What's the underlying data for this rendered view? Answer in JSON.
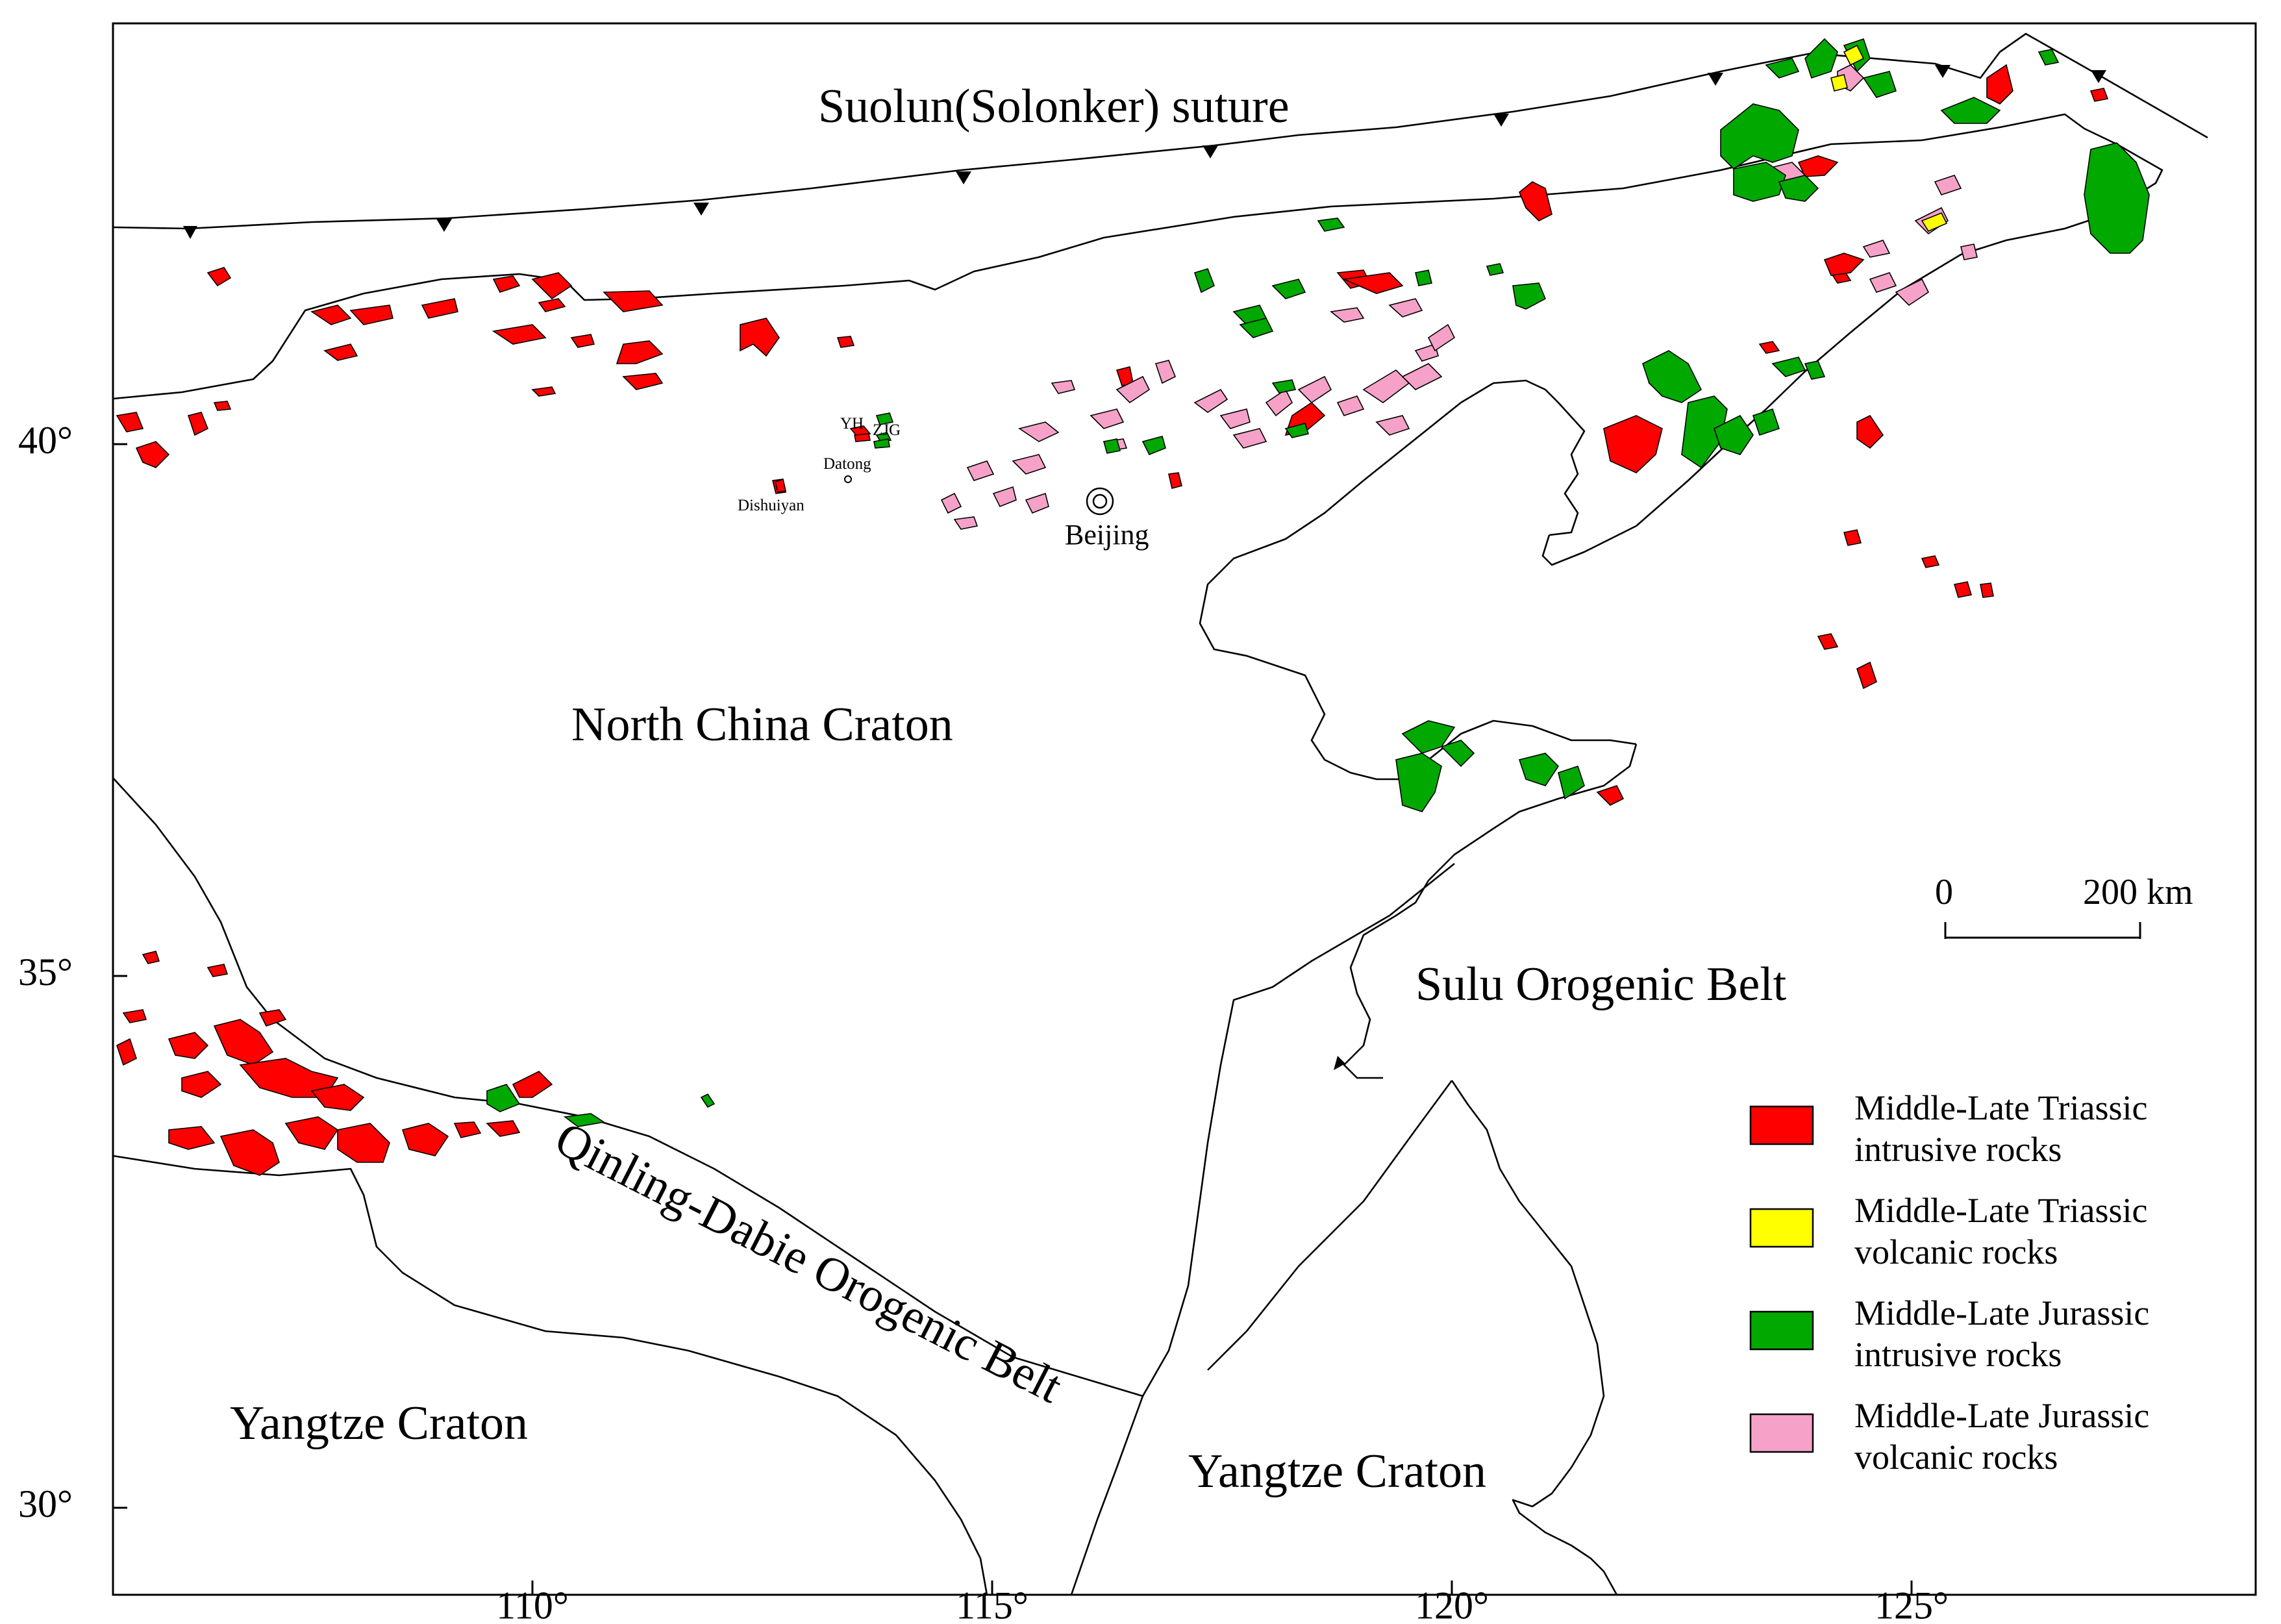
{
  "map": {
    "suture_label": "Suolun(Solonker) suture",
    "regions": {
      "north_china_craton": "North China Craton",
      "sulu_belt": "Sulu Orogenic Belt",
      "qinling_dabie_belt": "Qinling-Dabie Orogenic Belt",
      "yangtze_west": "Yangtze Craton",
      "yangtze_east": "Yangtze Craton"
    },
    "places": {
      "beijing": "Beijing",
      "datong": "Datong",
      "dishuiyan": "Dishuiyan",
      "yh": "YH",
      "zjg": "ZJG"
    },
    "lat_ticks": [
      "40°",
      "35°",
      "30°"
    ],
    "lon_ticks": [
      "110°",
      "115°",
      "120°",
      "125°"
    ],
    "scale_bar": {
      "start": "0",
      "end": "200 km"
    }
  },
  "legend": {
    "items": [
      {
        "line1": "Middle-Late Triassic",
        "line2": "intrusive rocks",
        "color": "#ff0000"
      },
      {
        "line1": "Middle-Late Triassic",
        "line2": "volcanic rocks",
        "color": "#ffff00"
      },
      {
        "line1": "Middle-Late Jurassic",
        "line2": "intrusive rocks",
        "color": "#00a800"
      },
      {
        "line1": "Middle-Late Jurassic",
        "line2": "volcanic rocks",
        "color": "#f6a2c8"
      }
    ]
  }
}
